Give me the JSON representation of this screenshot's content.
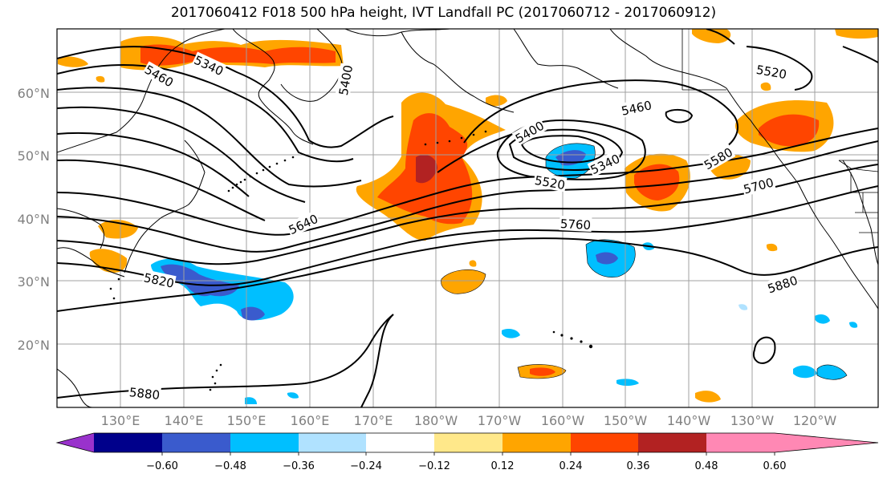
{
  "title": "2017060412 F018 500 hPa height, IVT Landfall PC (2017060712 - 2017060912)",
  "map": {
    "projection": "cylindrical",
    "lon_range": [
      121,
      251
    ],
    "lat_range": [
      10,
      70
    ],
    "gridlines": true,
    "lat_ticks": [
      "20°N",
      "30°N",
      "40°N",
      "50°N",
      "60°N"
    ],
    "lon_ticks": [
      "130°E",
      "140°E",
      "150°E",
      "160°E",
      "170°E",
      "180°W",
      "170°W",
      "160°W",
      "150°W",
      "140°W",
      "130°W",
      "120°W"
    ],
    "contour_variable": "500 hPa height",
    "contour_labels": [
      "5340",
      "5460",
      "5400",
      "5400",
      "5460",
      "5340",
      "5520",
      "5520",
      "5580",
      "5700",
      "5640",
      "5760",
      "5820",
      "5880",
      "5880"
    ]
  },
  "colorbar": {
    "colors": [
      "#9932cc",
      "#00008b",
      "#3a5bcd",
      "#00bfff",
      "#b0e2ff",
      "#ffffff",
      "#ffe88a",
      "#ffa500",
      "#ff4500",
      "#b22222",
      "#ff88b4"
    ],
    "labels": [
      "−0.60",
      "−0.48",
      "−0.36",
      "−0.24",
      "−0.12",
      "0.12",
      "0.24",
      "0.36",
      "0.48",
      "0.60"
    ],
    "extend": "both"
  }
}
